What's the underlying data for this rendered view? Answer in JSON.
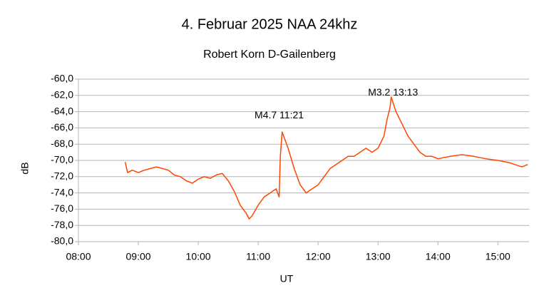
{
  "chart_data": {
    "type": "line",
    "title": "4. Februar 2025   NAA 24khz",
    "subtitle": "Robert Korn  D-Gailenberg",
    "y_label": "dB",
    "x_label": "UT",
    "annotations": [
      {
        "text": "M4.7  11:21",
        "x": 11.35,
        "y": -64.5
      },
      {
        "text": "M3.2   13:13",
        "x": 13.25,
        "y": -61.7
      }
    ],
    "x": [
      8.78,
      8.82,
      8.9,
      9.0,
      9.1,
      9.2,
      9.3,
      9.4,
      9.5,
      9.6,
      9.7,
      9.8,
      9.9,
      10.0,
      10.1,
      10.2,
      10.3,
      10.4,
      10.5,
      10.6,
      10.7,
      10.8,
      10.85,
      10.9,
      11.0,
      11.1,
      11.2,
      11.3,
      11.35,
      11.37,
      11.4,
      11.45,
      11.5,
      11.6,
      11.7,
      11.8,
      11.9,
      12.0,
      12.1,
      12.2,
      12.3,
      12.4,
      12.5,
      12.6,
      12.7,
      12.8,
      12.9,
      13.0,
      13.1,
      13.15,
      13.2,
      13.22,
      13.3,
      13.4,
      13.5,
      13.6,
      13.7,
      13.8,
      13.9,
      14.0,
      14.2,
      14.4,
      14.6,
      14.8,
      15.0,
      15.2,
      15.4,
      15.5
    ],
    "series": [
      {
        "name": "NAA 24khz",
        "color": "#ff4500",
        "values": [
          -70.2,
          -71.5,
          -71.2,
          -71.5,
          -71.2,
          -71.0,
          -70.8,
          -71.0,
          -71.2,
          -71.8,
          -72.0,
          -72.5,
          -72.8,
          -72.3,
          -72.0,
          -72.2,
          -71.8,
          -71.6,
          -72.5,
          -73.8,
          -75.5,
          -76.5,
          -77.2,
          -76.8,
          -75.5,
          -74.5,
          -74.0,
          -73.5,
          -74.5,
          -69.5,
          -66.5,
          -67.5,
          -68.5,
          -71.0,
          -73.0,
          -74.0,
          -73.5,
          -73.0,
          -72.0,
          -71.0,
          -70.5,
          -70.0,
          -69.5,
          -69.5,
          -69.0,
          -68.5,
          -69.0,
          -68.5,
          -67.0,
          -65.0,
          -63.5,
          -62.2,
          -64.0,
          -65.5,
          -67.0,
          -68.0,
          -69.0,
          -69.5,
          -69.5,
          -69.8,
          -69.5,
          -69.3,
          -69.5,
          -69.8,
          -70.0,
          -70.3,
          -70.8,
          -70.5
        ]
      }
    ],
    "xlim": [
      8,
      15.52
    ],
    "ylim": [
      -80,
      -60
    ],
    "xticks": [
      {
        "value": 8,
        "label": "08:00"
      },
      {
        "value": 9,
        "label": "09:00"
      },
      {
        "value": 10,
        "label": "10:00"
      },
      {
        "value": 11,
        "label": "11:00"
      },
      {
        "value": 12,
        "label": "12:00"
      },
      {
        "value": 13,
        "label": "13:00"
      },
      {
        "value": 14,
        "label": "14:00"
      },
      {
        "value": 15,
        "label": "15:00"
      }
    ],
    "yticks": [
      {
        "value": -80,
        "label": "-80,0"
      },
      {
        "value": -78,
        "label": "-78,0"
      },
      {
        "value": -76,
        "label": "-76,0"
      },
      {
        "value": -74,
        "label": "-74,0"
      },
      {
        "value": -72,
        "label": "-72,0"
      },
      {
        "value": -70,
        "label": "-70,0"
      },
      {
        "value": -68,
        "label": "-68,0"
      },
      {
        "value": -66,
        "label": "-66,0"
      },
      {
        "value": -64,
        "label": "-64,0"
      },
      {
        "value": -62,
        "label": "-62,0"
      },
      {
        "value": -60,
        "label": "-60,0"
      }
    ],
    "grid": true
  }
}
